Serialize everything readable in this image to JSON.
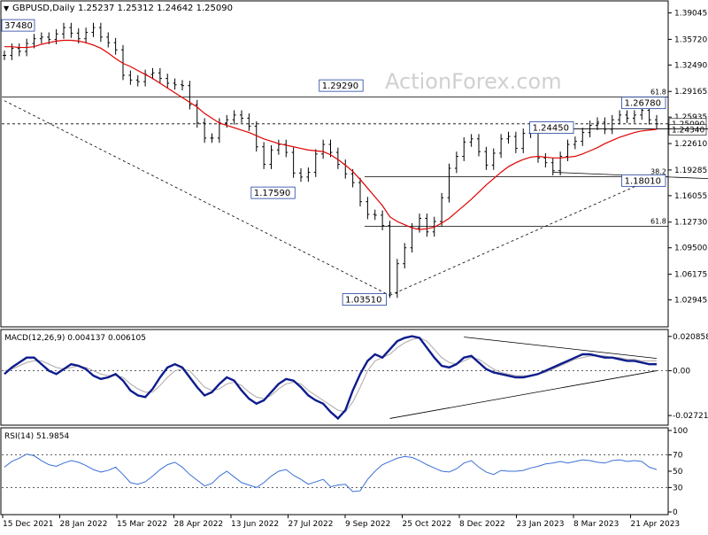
{
  "header": {
    "symbol": "GBPUSD",
    "timeframe": "Daily",
    "ohlc": "1.25237 1.25312 1.24642 1.25090"
  },
  "watermark": "ActionForex.com",
  "colors": {
    "price": "#000000",
    "ma": "#e00000",
    "macd": "#0d1c8c",
    "signal": "#b0a8a8",
    "rsi": "#3b6fd6",
    "label_border": "#2040a0"
  },
  "chart_data": [
    {
      "type": "line",
      "pane": "price",
      "title": "GBPUSD,Daily",
      "ylim": [
        1.0,
        1.4
      ],
      "y_ticks": [
        "1.39045",
        "1.35720",
        "1.32490",
        "1.29165",
        "1.25935",
        "1.22610",
        "1.19285",
        "1.16055",
        "1.12730",
        "1.09500",
        "1.06175",
        "1.02945"
      ],
      "current_price_labels": [
        "1.25090",
        "1.24340"
      ],
      "series": [
        {
          "values": [
            1.337,
            1.346,
            1.342,
            1.352,
            1.358,
            1.36,
            1.357,
            1.364,
            1.372,
            1.365,
            1.358,
            1.366,
            1.372,
            1.36,
            1.353,
            1.344,
            1.312,
            1.306,
            1.304,
            1.313,
            1.315,
            1.308,
            1.302,
            1.3,
            1.299,
            1.275,
            1.252,
            1.233,
            1.233,
            1.252,
            1.256,
            1.262,
            1.258,
            1.248,
            1.222,
            1.2,
            1.218,
            1.225,
            1.215,
            1.189,
            1.184,
            1.19,
            1.213,
            1.225,
            1.215,
            1.2,
            1.188,
            1.177,
            1.153,
            1.137,
            1.136,
            1.123,
            1.038,
            1.075,
            1.095,
            1.12,
            1.132,
            1.115,
            1.128,
            1.158,
            1.195,
            1.21,
            1.228,
            1.232,
            1.216,
            1.199,
            1.214,
            1.232,
            1.235,
            1.22,
            1.239,
            1.24,
            1.208,
            1.202,
            1.192,
            1.21,
            1.225,
            1.229,
            1.24,
            1.249,
            1.253,
            1.244,
            1.256,
            1.262,
            1.258,
            1.262,
            1.268,
            1.256,
            1.2509
          ]
        },
        {
          "values": [
            1.348,
            1.348,
            1.347,
            1.347,
            1.348,
            1.351,
            1.353,
            1.355,
            1.356,
            1.356,
            1.355,
            1.353,
            1.35,
            1.346,
            1.34,
            1.333,
            1.327,
            1.323,
            1.318,
            1.313,
            1.308,
            1.302,
            1.296,
            1.29,
            1.284,
            1.278,
            1.272,
            1.264,
            1.258,
            1.252,
            1.249,
            1.246,
            1.243,
            1.24,
            1.236,
            1.232,
            1.229,
            1.226,
            1.224,
            1.222,
            1.22,
            1.218,
            1.217,
            1.216,
            1.212,
            1.206,
            1.199,
            1.191,
            1.181,
            1.17,
            1.159,
            1.148,
            1.134,
            1.128,
            1.124,
            1.12,
            1.118,
            1.119,
            1.121,
            1.126,
            1.132,
            1.14,
            1.148,
            1.156,
            1.165,
            1.174,
            1.182,
            1.19,
            1.197,
            1.202,
            1.206,
            1.209,
            1.21,
            1.209,
            1.208,
            1.208,
            1.209,
            1.21,
            1.213,
            1.217,
            1.221,
            1.226,
            1.23,
            1.234,
            1.237,
            1.24,
            1.242,
            1.243,
            1.244
          ]
        }
      ],
      "annotations": [
        {
          "text": "37480",
          "x": 0,
          "y": 1.3748
        },
        {
          "text": "1.29290",
          "x": 42,
          "y": 1.2929
        },
        {
          "text": "1.17590",
          "x": 38,
          "y": 1.1759
        },
        {
          "text": "1.03510",
          "x": 52,
          "y": 1.0351
        },
        {
          "text": "1.24450",
          "x": 72,
          "y": 1.2445
        },
        {
          "text": "1.18010",
          "x": 88,
          "y": 1.1801
        },
        {
          "text": "1.26780",
          "x": 103,
          "y": 1.2678
        }
      ],
      "fib_levels": [
        {
          "text": "61.8",
          "y": 1.2845
        },
        {
          "text": "38.2",
          "y": 1.1843
        },
        {
          "text": "61.8",
          "y": 1.122
        }
      ]
    },
    {
      "type": "line",
      "pane": "macd",
      "title": "MACD(12,26,9) 0.004137 0.006105",
      "ylim": [
        -0.032,
        0.024
      ],
      "y_ticks": [
        "0.020858",
        "0.00",
        "-0.027213"
      ],
      "series": [
        {
          "values": [
            -0.002,
            0.002,
            0.005,
            0.008,
            0.008,
            0.004,
            0.0,
            -0.002,
            0.001,
            0.004,
            0.003,
            0.001,
            -0.003,
            -0.005,
            -0.004,
            -0.002,
            -0.006,
            -0.012,
            -0.015,
            -0.016,
            -0.011,
            -0.004,
            0.002,
            0.004,
            0.002,
            -0.004,
            -0.01,
            -0.015,
            -0.013,
            -0.008,
            -0.004,
            -0.006,
            -0.012,
            -0.017,
            -0.02,
            -0.018,
            -0.013,
            -0.008,
            -0.005,
            -0.006,
            -0.01,
            -0.015,
            -0.018,
            -0.02,
            -0.025,
            -0.029,
            -0.024,
            -0.012,
            -0.002,
            0.006,
            0.01,
            0.008,
            0.013,
            0.018,
            0.02,
            0.021,
            0.02,
            0.014,
            0.008,
            0.003,
            0.002,
            0.004,
            0.008,
            0.009,
            0.005,
            0.001,
            -0.001,
            -0.002,
            -0.003,
            -0.004,
            -0.004,
            -0.003,
            -0.002,
            0.0,
            0.002,
            0.004,
            0.006,
            0.008,
            0.01,
            0.01,
            0.009,
            0.008,
            0.008,
            0.007,
            0.006,
            0.006,
            0.005,
            0.004,
            0.004
          ]
        },
        {
          "values": [
            0.0,
            0.001,
            0.003,
            0.005,
            0.006,
            0.006,
            0.004,
            0.002,
            0.001,
            0.002,
            0.003,
            0.002,
            0.0,
            -0.002,
            -0.003,
            -0.003,
            -0.004,
            -0.008,
            -0.011,
            -0.013,
            -0.013,
            -0.009,
            -0.004,
            0.0,
            0.001,
            0.0,
            -0.005,
            -0.01,
            -0.012,
            -0.011,
            -0.008,
            -0.007,
            -0.009,
            -0.013,
            -0.016,
            -0.017,
            -0.015,
            -0.011,
            -0.008,
            -0.007,
            -0.008,
            -0.012,
            -0.015,
            -0.018,
            -0.021,
            -0.024,
            -0.025,
            -0.019,
            -0.01,
            0.0,
            0.006,
            0.008,
            0.01,
            0.014,
            0.017,
            0.019,
            0.02,
            0.018,
            0.013,
            0.008,
            0.005,
            0.004,
            0.006,
            0.008,
            0.007,
            0.004,
            0.001,
            -0.001,
            -0.002,
            -0.003,
            -0.003,
            -0.003,
            -0.002,
            -0.001,
            0.001,
            0.003,
            0.005,
            0.007,
            0.008,
            0.009,
            0.009,
            0.009,
            0.008,
            0.008,
            0.007,
            0.007,
            0.006,
            0.006,
            0.006
          ]
        }
      ]
    },
    {
      "type": "line",
      "pane": "rsi",
      "title": "RSI(14) 51.9854",
      "ylim": [
        0,
        100
      ],
      "y_ticks": [
        "100",
        "70",
        "50",
        "30",
        "0"
      ],
      "series": [
        {
          "values": [
            55,
            62,
            66,
            71,
            69,
            63,
            58,
            56,
            60,
            63,
            61,
            57,
            52,
            49,
            51,
            55,
            46,
            36,
            34,
            37,
            44,
            52,
            58,
            61,
            55,
            46,
            39,
            32,
            35,
            44,
            50,
            43,
            36,
            33,
            30,
            36,
            44,
            50,
            52,
            45,
            40,
            34,
            37,
            40,
            31,
            33,
            34,
            25,
            26,
            40,
            50,
            58,
            62,
            66,
            68,
            67,
            63,
            58,
            54,
            50,
            49,
            53,
            60,
            63,
            55,
            49,
            46,
            51,
            50,
            50,
            51,
            54,
            56,
            59,
            60,
            62,
            60,
            62,
            64,
            63,
            61,
            60,
            63,
            64,
            62,
            63,
            62,
            55,
            52
          ]
        }
      ]
    }
  ],
  "x_axis": {
    "labels": [
      "15 Dec 2021",
      "28 Jan 2022",
      "15 Mar 2022",
      "28 Apr 2022",
      "13 Jun 2022",
      "27 Jul 2022",
      "9 Sep 2022",
      "25 Oct 2022",
      "8 Dec 2022",
      "23 Jan 2023",
      "8 Mar 2023",
      "21 Apr 2023"
    ]
  }
}
